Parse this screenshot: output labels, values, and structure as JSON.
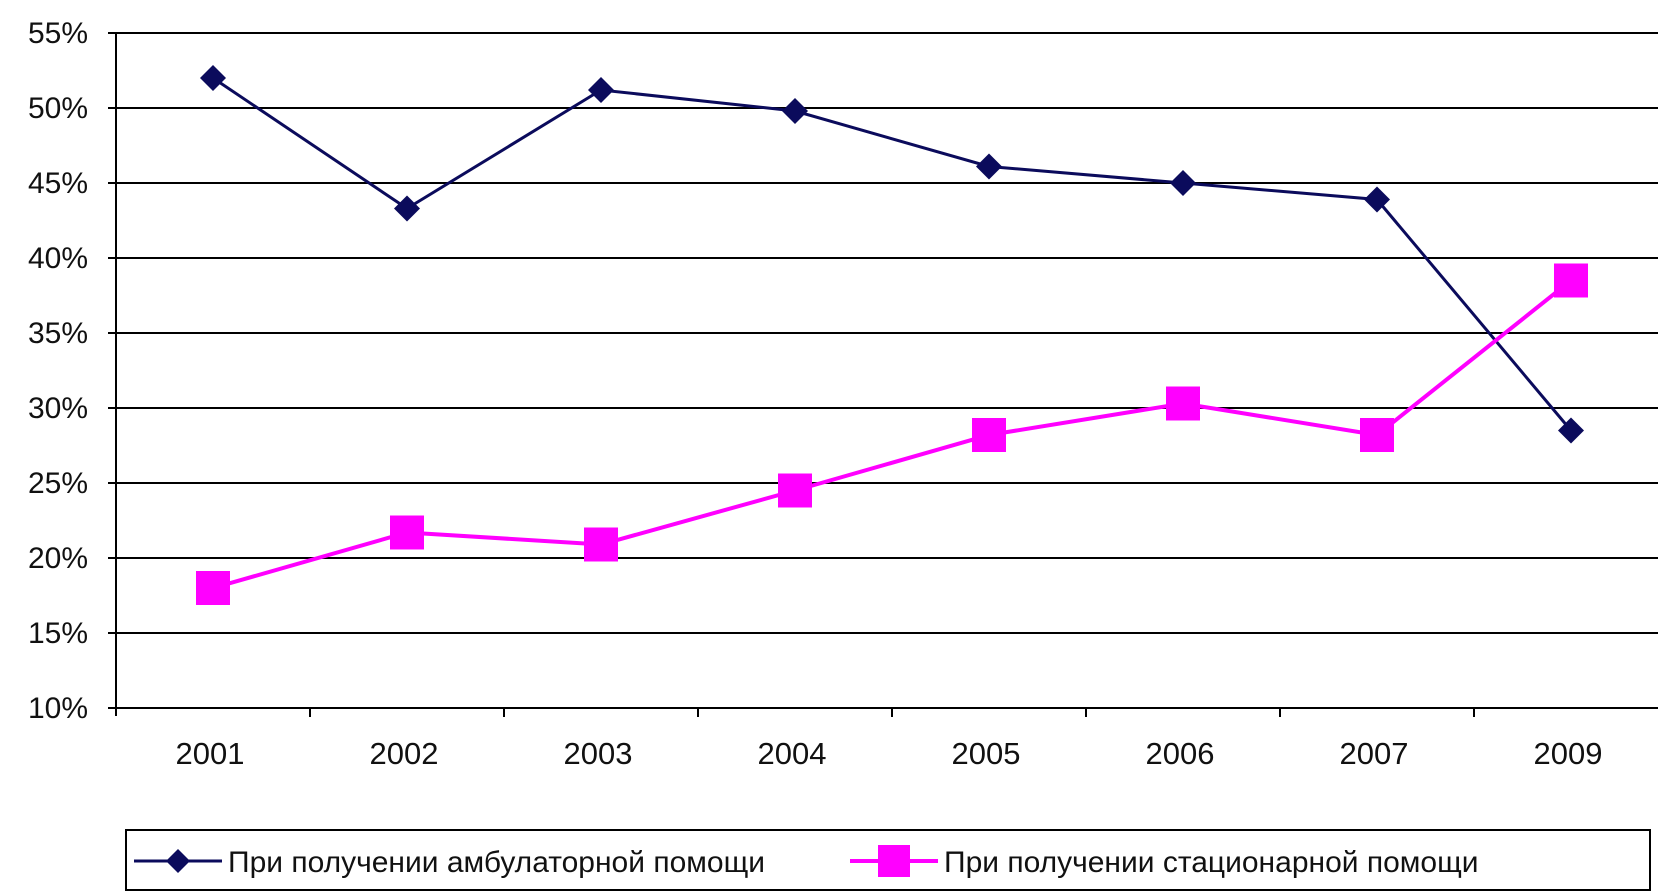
{
  "chart_data": {
    "type": "line",
    "title": "",
    "xlabel": "",
    "ylabel": "",
    "categories": [
      "2001",
      "2002",
      "2003",
      "2004",
      "2005",
      "2006",
      "2007",
      "2009"
    ],
    "y_ticks": [
      "10%",
      "15%",
      "20%",
      "25%",
      "30%",
      "35%",
      "40%",
      "45%",
      "50%",
      "55%"
    ],
    "ylim": [
      10,
      55
    ],
    "y_unit": "%",
    "grid": "horizontal",
    "legend_position": "bottom",
    "series": [
      {
        "name": "При получении амбулаторной помощи",
        "color": "#0b0b5c",
        "marker": "diamond",
        "values": [
          52,
          43.3,
          51.2,
          49.8,
          46.1,
          45,
          43.9,
          28.5
        ]
      },
      {
        "name": "При получении стационарной помощи",
        "color": "#ff00ff",
        "marker": "square",
        "values": [
          18,
          21.7,
          20.9,
          24.5,
          28.2,
          30.3,
          28.2,
          38.5
        ]
      }
    ]
  }
}
